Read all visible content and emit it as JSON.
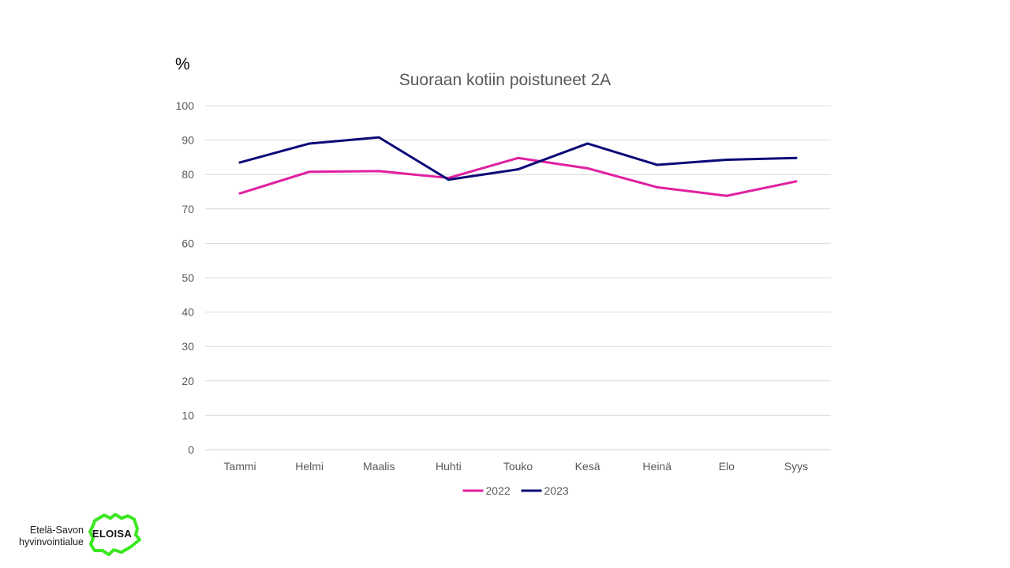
{
  "slide": {
    "unit": "%",
    "logo": {
      "line1": "Etelä-Savon",
      "line2": "hyvinvointialue",
      "wordmark": "ELOISA",
      "color": "#39e81f"
    }
  },
  "chart_data": {
    "type": "line",
    "title": "Suoraan kotiin poistuneet 2A",
    "xlabel": "",
    "ylabel": "%",
    "categories": [
      "Tammi",
      "Helmi",
      "Maalis",
      "Huhti",
      "Touko",
      "Kesä",
      "Heinä",
      "Elo",
      "Syys"
    ],
    "ylim": [
      0,
      100
    ],
    "yticks": [
      0,
      10,
      20,
      30,
      40,
      50,
      60,
      70,
      80,
      90,
      100
    ],
    "grid": true,
    "legend_position": "bottom",
    "series": [
      {
        "name": "2022",
        "color": "#e020a0",
        "values": [
          74.5,
          80.8,
          81.0,
          79.0,
          84.8,
          81.8,
          76.3,
          73.8,
          78.0
        ]
      },
      {
        "name": "2023",
        "color": "#0a0a78",
        "values": [
          83.5,
          89.0,
          90.8,
          78.5,
          81.5,
          89.0,
          82.8,
          84.3,
          84.8
        ]
      }
    ]
  }
}
